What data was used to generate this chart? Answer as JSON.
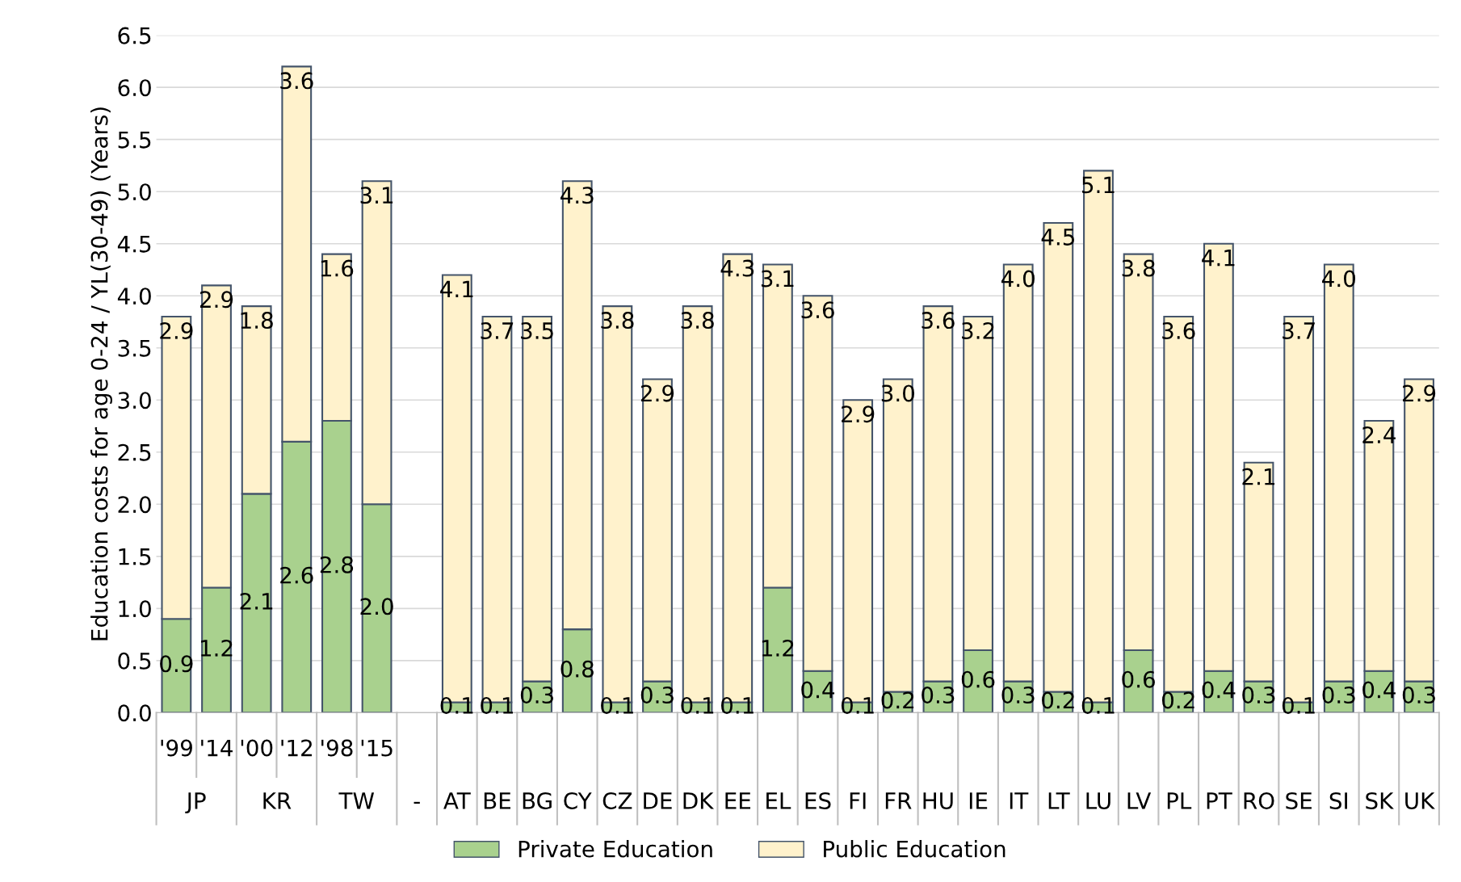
{
  "chart_data": {
    "type": "bar",
    "stacked": true,
    "ylabel": "Education costs for age 0-24 / YL(30-49) (Years)",
    "categories": [
      "'99",
      "'14",
      "'00",
      "'12",
      "'98",
      "'15",
      "-",
      "AT",
      "BE",
      "BG",
      "CY",
      "CZ",
      "DE",
      "DK",
      "EE",
      "EL",
      "ES",
      "FI",
      "FR",
      "HU",
      "IE",
      "IT",
      "LT",
      "LU",
      "LV",
      "PL",
      "PT",
      "RO",
      "SE",
      "SI",
      "SK",
      "UK"
    ],
    "series": [
      {
        "name": "Private Education",
        "color": "#a9d18e",
        "values": [
          0.9,
          1.2,
          2.1,
          2.6,
          2.8,
          2.0,
          null,
          0.1,
          0.1,
          0.3,
          0.8,
          0.1,
          0.3,
          0.1,
          0.1,
          1.2,
          0.4,
          0.1,
          0.2,
          0.3,
          0.6,
          0.3,
          0.2,
          0.1,
          0.6,
          0.2,
          0.4,
          0.3,
          0.1,
          0.3,
          0.4,
          0.3
        ],
        "value_labels": [
          "0.9",
          "1.2",
          "2.1",
          "2.6",
          "2.8",
          "2.0",
          null,
          "0.1",
          "0.1",
          "0.3",
          "0.8",
          "0.1",
          "0.3",
          "0.1",
          "0.1",
          "1.2",
          "0.4",
          "0.1",
          "0.2",
          "0.3",
          "0.6",
          "0.3",
          "0.2",
          "0.1",
          "0.6",
          "0.2",
          "0.4",
          "0.3",
          "0.1",
          "0.3",
          "0.4",
          "0.3"
        ]
      },
      {
        "name": "Public Education",
        "color": "#fff2cc",
        "values": [
          2.9,
          2.9,
          1.8,
          3.6,
          1.6,
          3.1,
          null,
          4.1,
          3.7,
          3.5,
          4.3,
          3.8,
          2.9,
          3.8,
          4.3,
          3.1,
          3.6,
          2.9,
          3.0,
          3.6,
          3.2,
          4.0,
          4.5,
          5.1,
          3.8,
          3.6,
          4.1,
          2.1,
          3.7,
          4.0,
          2.4,
          2.9
        ],
        "value_labels": [
          "2.9",
          "2.9",
          "1.8",
          "3.6",
          "1.6",
          "3.1",
          null,
          "4.1",
          "3.7",
          "3.5",
          "4.3",
          "3.8",
          "2.9",
          "3.8",
          "4.3",
          "3.1",
          "3.6",
          "2.9",
          "3.0",
          "3.6",
          "3.2",
          "4.0",
          "4.5",
          "5.1",
          "3.8",
          "3.6",
          "4.1",
          "2.1",
          "3.7",
          "4.0",
          "2.4",
          "2.9"
        ]
      }
    ],
    "annotations": [
      "JP",
      "KR",
      "TW"
    ],
    "ylim": [
      0,
      6.5
    ],
    "yticks": [
      {
        "value": 0,
        "label": "0.0"
      },
      {
        "value": 0.5,
        "label": "0.5"
      },
      {
        "value": 1,
        "label": "1.0"
      },
      {
        "value": 1.5,
        "label": "1.5"
      },
      {
        "value": 2,
        "label": "2.0"
      },
      {
        "value": 2.5,
        "label": "2.5"
      },
      {
        "value": 3,
        "label": "3.0"
      },
      {
        "value": 3.5,
        "label": "3.5"
      },
      {
        "value": 4,
        "label": "4.0"
      },
      {
        "value": 4.5,
        "label": "4.5"
      },
      {
        "value": 5,
        "label": "5.0"
      },
      {
        "value": 5.5,
        "label": "5.5"
      },
      {
        "value": 6,
        "label": "6.0"
      },
      {
        "value": 6.5,
        "label": "6.5"
      }
    ],
    "grid": "y",
    "legend": "bottom"
  }
}
